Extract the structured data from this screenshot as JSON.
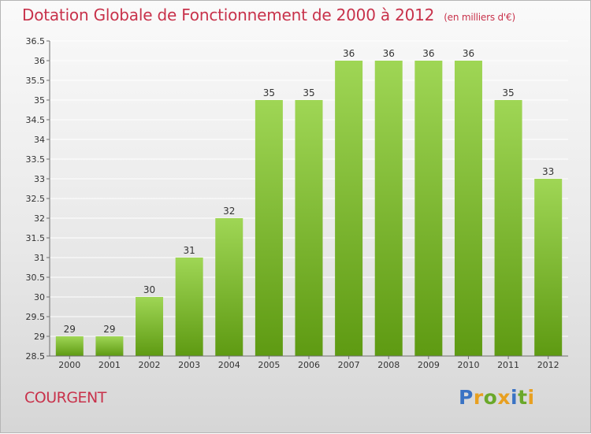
{
  "title": "Dotation Globale de Fonctionnement de 2000 à 2012",
  "unit": "(en milliers d'€)",
  "commune": "COURGENT",
  "logo": "Proxiti",
  "colors": {
    "title": "#c8324b",
    "bar_light": "#9fd655",
    "bar_dark": "#5e9a12",
    "grid": "#ffffff",
    "axis": "#6f6f6f",
    "logo": [
      "#3a73c4",
      "#e8a021",
      "#6aa82a",
      "#e8a021",
      "#3a73c4",
      "#6aa82a",
      "#e8a021"
    ]
  },
  "chart_data": {
    "type": "bar",
    "title": "Dotation Globale de Fonctionnement de 2000 à 2012",
    "subtitle": "(en milliers d'€)",
    "categories": [
      "2000",
      "2001",
      "2002",
      "2003",
      "2004",
      "2005",
      "2006",
      "2007",
      "2008",
      "2009",
      "2010",
      "2011",
      "2012"
    ],
    "values": [
      29,
      29,
      30,
      31,
      32,
      35,
      35,
      36,
      36,
      36,
      36,
      35,
      33
    ],
    "value_labels": [
      "29",
      "29",
      "30",
      "31",
      "32",
      "35",
      "35",
      "36",
      "36",
      "36",
      "36",
      "35",
      "33"
    ],
    "ylim": [
      28.5,
      36.5
    ],
    "yticks": [
      "28.5",
      "29",
      "29.5",
      "30",
      "30.5",
      "31",
      "31.5",
      "32",
      "32.5",
      "33",
      "33.5",
      "34",
      "34.5",
      "35",
      "35.5",
      "36",
      "36.5"
    ],
    "grid": true,
    "legend": "none"
  }
}
